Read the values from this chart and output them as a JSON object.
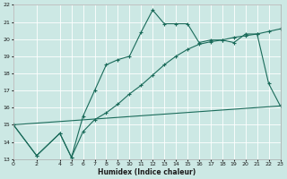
{
  "xlabel": "Humidex (Indice chaleur)",
  "bg_color": "#cce8e4",
  "grid_color": "#ffffff",
  "line_color": "#1a6b5a",
  "xlim": [
    0,
    23
  ],
  "ylim": [
    13,
    22
  ],
  "xticks": [
    0,
    2,
    4,
    5,
    6,
    7,
    8,
    9,
    10,
    11,
    12,
    13,
    14,
    15,
    16,
    17,
    18,
    19,
    20,
    21,
    22,
    23
  ],
  "yticks": [
    13,
    14,
    15,
    16,
    17,
    18,
    19,
    20,
    21,
    22
  ],
  "line1_x": [
    0,
    2,
    4,
    5,
    6,
    7,
    8,
    9,
    10,
    11,
    12,
    13,
    14,
    15,
    16,
    17,
    18,
    19,
    20,
    21,
    22,
    23
  ],
  "line1_y": [
    15.0,
    13.2,
    14.5,
    13.1,
    15.5,
    17.0,
    18.5,
    18.8,
    19.0,
    20.4,
    21.7,
    20.9,
    20.9,
    20.9,
    19.8,
    19.95,
    19.95,
    19.8,
    20.3,
    20.3,
    17.4,
    16.1
  ],
  "line2_x": [
    0,
    2,
    4,
    5,
    6,
    7,
    8,
    9,
    10,
    11,
    12,
    13,
    14,
    15,
    16,
    17,
    18,
    19,
    20,
    21,
    22,
    23
  ],
  "line2_y": [
    15.0,
    13.2,
    14.5,
    13.1,
    14.6,
    15.3,
    15.7,
    16.2,
    16.8,
    17.3,
    17.9,
    18.5,
    19.0,
    19.4,
    19.7,
    19.85,
    19.95,
    20.1,
    20.2,
    20.3,
    20.45,
    20.6
  ],
  "line3_x": [
    0,
    23
  ],
  "line3_y": [
    15.0,
    16.1
  ]
}
